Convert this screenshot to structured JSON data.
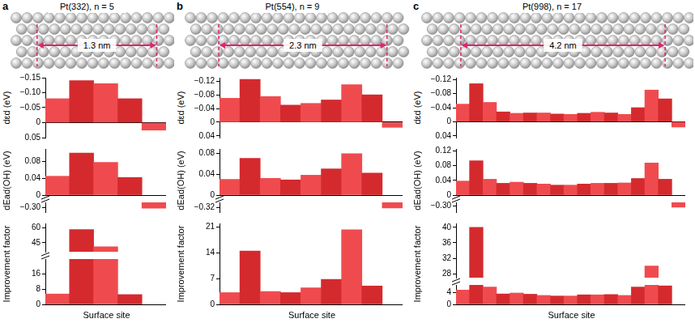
{
  "panels": [
    {
      "letter": "a",
      "structure": "Pt(332), n = 5",
      "width_label": "1.3 nm"
    },
    {
      "letter": "b",
      "structure": "Pt(554), n = 9",
      "width_label": "2.3 nm"
    },
    {
      "letter": "c",
      "structure": "Pt(998), n = 17",
      "width_label": "4.2 nm"
    }
  ],
  "chart_data": [
    {
      "type": "bar",
      "ylabel": "dεd (eV)",
      "xlabel": null,
      "grid": false,
      "tick_labels": "y",
      "categories": [
        null,
        null,
        null,
        null,
        null
      ],
      "values": [
        -0.08,
        -0.14,
        -0.13,
        -0.08,
        0.025
      ],
      "colors": [
        "#ef4b4f",
        "#d42a2e",
        "#ef4b4f",
        "#d42a2e",
        "#ef4b4f"
      ],
      "ylim": [
        0.05,
        -0.15
      ],
      "yticks": [
        {
          "value": -0.15,
          "label": "−0.15"
        },
        {
          "value": -0.1,
          "label": "−0.10"
        },
        {
          "value": -0.05,
          "label": "−0.05"
        },
        0,
        0.05
      ]
    },
    {
      "type": "bar",
      "ylabel": "dEad(OH) (eV)",
      "xlabel": null,
      "grid": false,
      "tick_labels": "y",
      "categories": [
        null,
        null,
        null,
        null,
        null
      ],
      "values": [
        0.045,
        0.1,
        0.078,
        0.042,
        -0.302
      ],
      "colors": [
        "#ef4b4f",
        "#d42a2e",
        "#ef4b4f",
        "#d42a2e",
        "#ef4b4f"
      ],
      "ylim": [
        [
          -0.31,
          -0.29
        ],
        [
          0,
          0.11
        ]
      ],
      "yticks": [
        [
          {
            "value": -0.3,
            "label": "−0.30"
          }
        ],
        [
          0,
          0.04,
          0.08
        ]
      ]
    },
    {
      "type": "bar",
      "ylabel": "Improvement factor",
      "xlabel": "Surface site",
      "grid": false,
      "tick_labels": "y",
      "categories": [
        null,
        null,
        null,
        null,
        null
      ],
      "values": [
        5.5,
        58,
        41,
        5.2,
        null
      ],
      "colors": [
        "#ef4b4f",
        "#d42a2e",
        "#ef4b4f",
        "#d42a2e",
        "#ef4b4f"
      ],
      "ylim": [
        [
          0,
          24
        ],
        [
          36,
          64
        ]
      ],
      "yticks": [
        [
          0,
          8,
          16
        ],
        [
          45,
          60
        ]
      ]
    },
    {
      "type": "bar",
      "ylabel": "dεd (eV)",
      "xlabel": null,
      "grid": false,
      "tick_labels": "y",
      "categories": [
        null,
        null,
        null,
        null,
        null,
        null,
        null,
        null,
        null
      ],
      "values": [
        -0.07,
        -0.125,
        -0.075,
        -0.05,
        -0.055,
        -0.065,
        -0.11,
        -0.08,
        0.015
      ],
      "colors": [
        "#ef4b4f",
        "#d42a2e",
        "#ef4b4f",
        "#d42a2e",
        "#ef4b4f",
        "#d42a2e",
        "#ef4b4f",
        "#d42a2e",
        "#ef4b4f"
      ],
      "ylim": [
        0.045,
        -0.13
      ],
      "yticks": [
        {
          "value": -0.12,
          "label": "−0.12"
        },
        {
          "value": -0.08,
          "label": "−0.08"
        },
        {
          "value": -0.04,
          "label": "−0.04"
        },
        0,
        0.04
      ]
    },
    {
      "type": "bar",
      "ylabel": "dEad(OH) (eV)",
      "xlabel": null,
      "grid": false,
      "tick_labels": "y",
      "categories": [
        null,
        null,
        null,
        null,
        null,
        null,
        null,
        null,
        null
      ],
      "values": [
        0.03,
        0.07,
        0.032,
        0.029,
        0.038,
        0.05,
        0.079,
        0.042,
        -0.322
      ],
      "colors": [
        "#ef4b4f",
        "#d42a2e",
        "#ef4b4f",
        "#d42a2e",
        "#ef4b4f",
        "#d42a2e",
        "#ef4b4f",
        "#d42a2e",
        "#ef4b4f"
      ],
      "ylim": [
        [
          -0.335,
          -0.305
        ],
        [
          0,
          0.088
        ]
      ],
      "yticks": [
        [
          {
            "value": -0.32,
            "label": "−0.32"
          }
        ],
        [
          0,
          0.04,
          0.08
        ]
      ]
    },
    {
      "type": "bar",
      "ylabel": "Improvement factor",
      "xlabel": "Surface site",
      "grid": false,
      "tick_labels": "y",
      "categories": [
        null,
        null,
        null,
        null,
        null,
        null,
        null,
        null,
        null
      ],
      "values": [
        3.2,
        14.5,
        3.5,
        3.2,
        4.5,
        6.8,
        20.3,
        5,
        null
      ],
      "colors": [
        "#ef4b4f",
        "#d42a2e",
        "#ef4b4f",
        "#d42a2e",
        "#ef4b4f",
        "#d42a2e",
        "#ef4b4f",
        "#d42a2e",
        "#ef4b4f"
      ],
      "ylim": [
        0,
        22
      ],
      "yticks": [
        0,
        7,
        14,
        21
      ]
    },
    {
      "type": "bar",
      "ylabel": "dεd (eV)",
      "xlabel": null,
      "grid": false,
      "tick_labels": "y",
      "categories": [
        null,
        null,
        null,
        null,
        null,
        null,
        null,
        null,
        null,
        null,
        null,
        null,
        null,
        null,
        null,
        null,
        null
      ],
      "values": [
        -0.05,
        -0.108,
        -0.055,
        -0.028,
        -0.024,
        -0.025,
        -0.025,
        -0.022,
        -0.021,
        -0.024,
        -0.027,
        -0.025,
        -0.021,
        -0.04,
        -0.09,
        -0.065,
        0.015
      ],
      "colors": [
        "#ef4b4f",
        "#d42a2e",
        "#ef4b4f",
        "#d42a2e",
        "#ef4b4f",
        "#d42a2e",
        "#ef4b4f",
        "#d42a2e",
        "#ef4b4f",
        "#d42a2e",
        "#ef4b4f",
        "#d42a2e",
        "#ef4b4f",
        "#d42a2e",
        "#ef4b4f",
        "#d42a2e",
        "#ef4b4f"
      ],
      "ylim": [
        0.045,
        -0.125
      ],
      "yticks": [
        {
          "value": -0.12,
          "label": "−0.12"
        },
        {
          "value": -0.08,
          "label": "−0.08"
        },
        {
          "value": -0.04,
          "label": "−0.04"
        },
        0,
        0.04
      ]
    },
    {
      "type": "bar",
      "ylabel": "dEad(OH) (eV)",
      "xlabel": null,
      "grid": false,
      "tick_labels": "y",
      "categories": [
        null,
        null,
        null,
        null,
        null,
        null,
        null,
        null,
        null,
        null,
        null,
        null,
        null,
        null,
        null,
        null,
        null
      ],
      "values": [
        0.038,
        0.093,
        0.043,
        0.032,
        0.035,
        0.032,
        0.03,
        0.027,
        0.027,
        0.03,
        0.032,
        0.032,
        0.033,
        0.045,
        0.087,
        0.043,
        -0.305
      ],
      "colors": [
        "#ef4b4f",
        "#d42a2e",
        "#ef4b4f",
        "#d42a2e",
        "#ef4b4f",
        "#d42a2e",
        "#ef4b4f",
        "#d42a2e",
        "#ef4b4f",
        "#d42a2e",
        "#ef4b4f",
        "#d42a2e",
        "#ef4b4f",
        "#d42a2e",
        "#ef4b4f",
        "#d42a2e",
        "#ef4b4f"
      ],
      "ylim": [
        [
          -0.32,
          -0.29
        ],
        [
          0,
          0.125
        ]
      ],
      "yticks": [
        [
          {
            "value": -0.3,
            "label": "−0.30"
          }
        ],
        [
          0,
          0.04,
          0.08,
          0.12
        ]
      ]
    },
    {
      "type": "bar",
      "ylabel": "Improvement factor",
      "xlabel": "Surface site",
      "grid": false,
      "tick_labels": "y",
      "categories": [
        null,
        null,
        null,
        null,
        null,
        null,
        null,
        null,
        null,
        null,
        null,
        null,
        null,
        null,
        null,
        null,
        null
      ],
      "values": [
        4.8,
        40,
        5.8,
        3.5,
        3.8,
        3.4,
        3,
        2.8,
        2.8,
        3.2,
        3.2,
        3.3,
        3,
        5.8,
        30,
        6.2,
        null
      ],
      "colors": [
        "#ef4b4f",
        "#d42a2e",
        "#ef4b4f",
        "#d42a2e",
        "#ef4b4f",
        "#d42a2e",
        "#ef4b4f",
        "#d42a2e",
        "#ef4b4f",
        "#d42a2e",
        "#ef4b4f",
        "#d42a2e",
        "#ef4b4f",
        "#d42a2e",
        "#ef4b4f",
        "#d42a2e",
        "#ef4b4f"
      ],
      "ylim": [
        [
          0,
          6.5
        ],
        [
          27,
          41
        ]
      ],
      "yticks": [
        [
          0,
          4
        ],
        [
          28,
          32,
          36,
          40
        ]
      ]
    }
  ]
}
